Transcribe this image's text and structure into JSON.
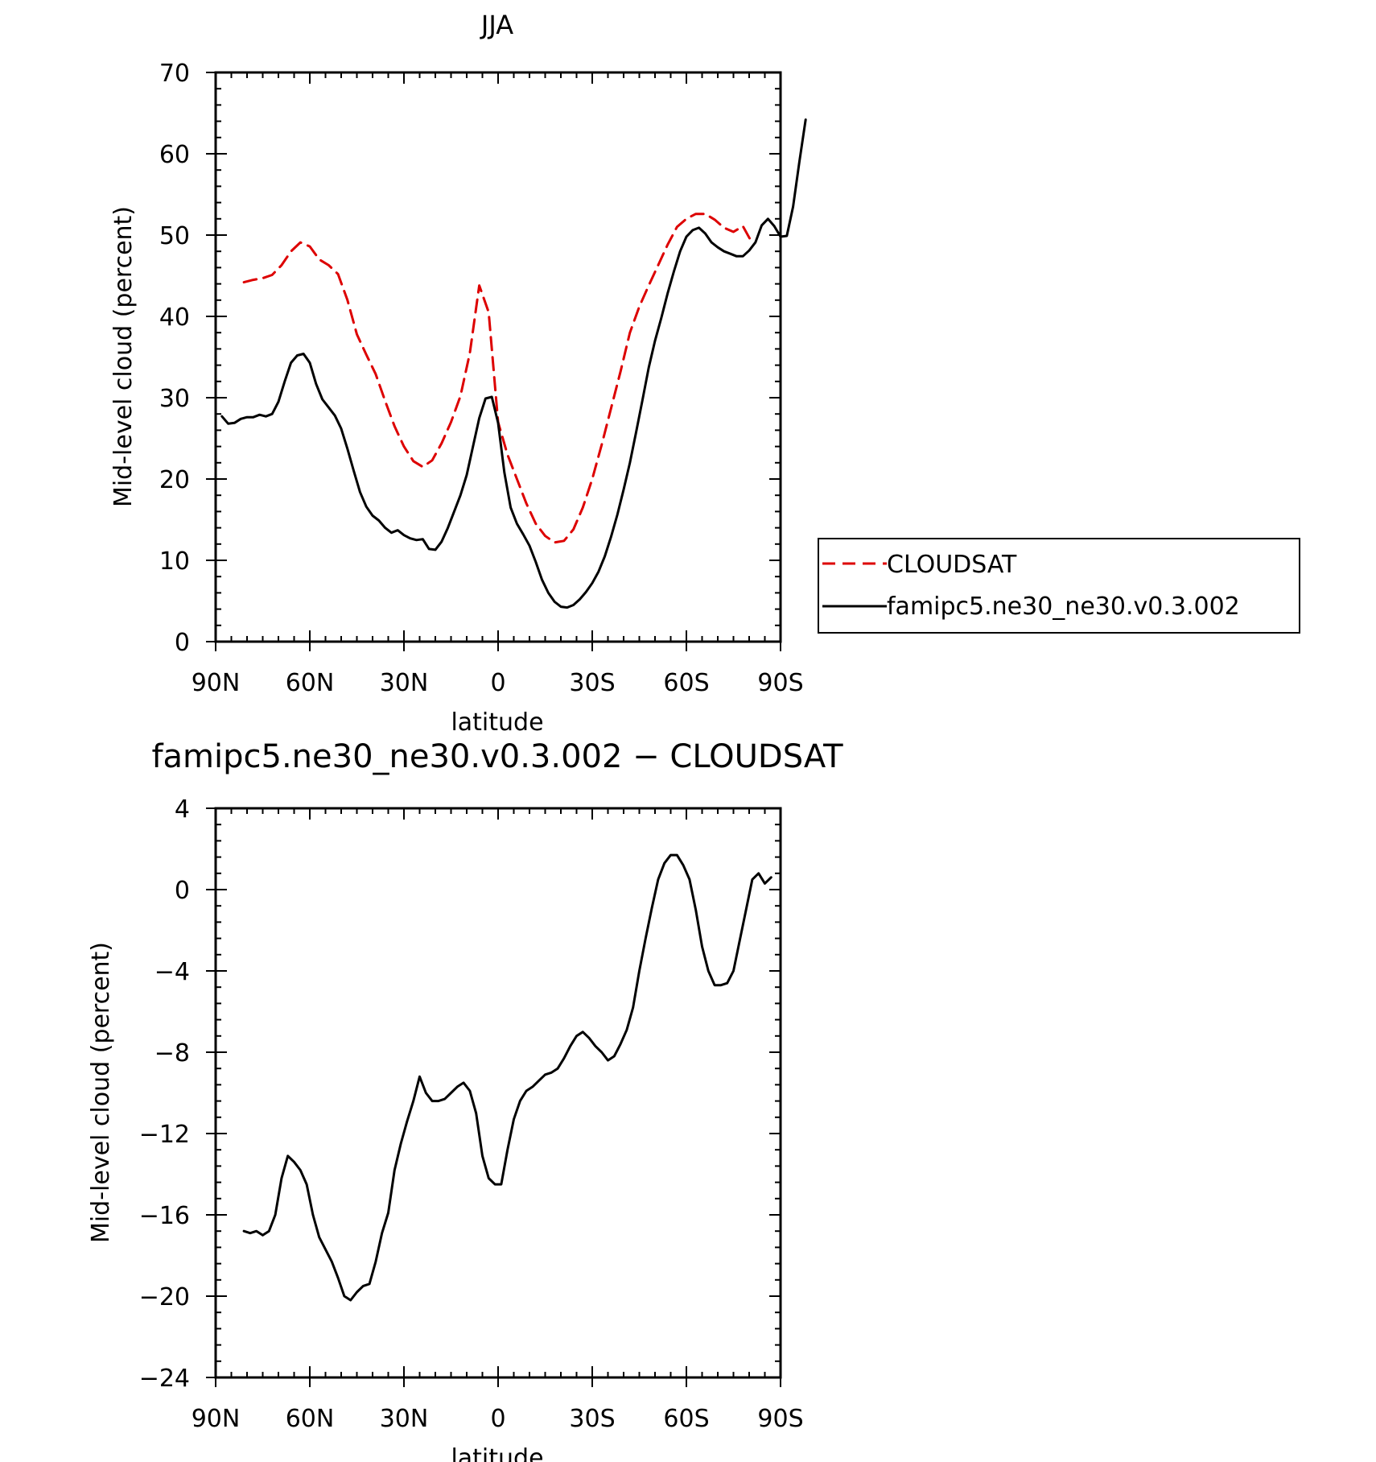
{
  "chart_data": [
    {
      "type": "line",
      "title": "JJA",
      "xlabel": "latitude",
      "ylabel": "Mid-level cloud (percent)",
      "xlim": [
        90,
        -90
      ],
      "ylim": [
        0,
        70
      ],
      "x_ticks": [
        90,
        60,
        30,
        0,
        -30,
        -60,
        -90
      ],
      "x_tick_labels": [
        "90N",
        "60N",
        "30N",
        "0",
        "30S",
        "60S",
        "90S"
      ],
      "y_ticks": [
        0,
        10,
        20,
        30,
        40,
        50,
        60,
        70
      ],
      "y_tick_labels": [
        "0",
        "10",
        "20",
        "30",
        "40",
        "50",
        "60",
        "70"
      ],
      "legend_position": "right",
      "series": [
        {
          "name": "CLOUDSAT",
          "color": "#dd0000",
          "dash": "dashed",
          "points": [
            [
              81,
              44.2
            ],
            [
              78,
              44.5
            ],
            [
              75,
              44.7
            ],
            [
              72,
              45.1
            ],
            [
              69,
              46.3
            ],
            [
              66,
              48
            ],
            [
              63,
              49.1
            ],
            [
              60,
              48.6
            ],
            [
              57,
              47
            ],
            [
              54,
              46.3
            ],
            [
              51,
              45.2
            ],
            [
              48,
              42
            ],
            [
              45,
              37.8
            ],
            [
              42,
              35.3
            ],
            [
              39,
              32.9
            ],
            [
              36,
              29.6
            ],
            [
              33,
              26.5
            ],
            [
              30,
              24
            ],
            [
              27,
              22.2
            ],
            [
              24,
              21.5
            ],
            [
              21,
              22.3
            ],
            [
              18,
              24.4
            ],
            [
              15,
              27
            ],
            [
              12,
              30.2
            ],
            [
              9,
              35.5
            ],
            [
              6,
              43.8
            ],
            [
              3,
              40.5
            ],
            [
              0,
              27
            ],
            [
              -3,
              23
            ],
            [
              -6,
              20
            ],
            [
              -9,
              17
            ],
            [
              -12,
              14.5
            ],
            [
              -15,
              13
            ],
            [
              -18,
              12.2
            ],
            [
              -21,
              12.4
            ],
            [
              -24,
              13.8
            ],
            [
              -27,
              16.5
            ],
            [
              -30,
              20
            ],
            [
              -33,
              24.2
            ],
            [
              -36,
              28.7
            ],
            [
              -39,
              33.2
            ],
            [
              -42,
              38
            ],
            [
              -45,
              41.2
            ],
            [
              -48,
              43.8
            ],
            [
              -51,
              46.3
            ],
            [
              -54,
              48.8
            ],
            [
              -57,
              51
            ],
            [
              -60,
              52
            ],
            [
              -63,
              52.6
            ],
            [
              -66,
              52.6
            ],
            [
              -69,
              51.9
            ],
            [
              -72,
              50.9
            ],
            [
              -75,
              50.4
            ],
            [
              -78,
              51.1
            ],
            [
              -81,
              49
            ]
          ]
        },
        {
          "name": "famipc5.ne30_ne30.v0.3.002",
          "color": "#000000",
          "dash": "solid",
          "points": [
            [
              88,
              27.7
            ],
            [
              86,
              26.8
            ],
            [
              84,
              26.9
            ],
            [
              82,
              27.4
            ],
            [
              80,
              27.6
            ],
            [
              78,
              27.6
            ],
            [
              76,
              27.9
            ],
            [
              74,
              27.7
            ],
            [
              72,
              28
            ],
            [
              70,
              29.5
            ],
            [
              68,
              32
            ],
            [
              66,
              34.3
            ],
            [
              64,
              35.2
            ],
            [
              62,
              35.4
            ],
            [
              60,
              34.3
            ],
            [
              58,
              31.7
            ],
            [
              56,
              29.8
            ],
            [
              54,
              28.8
            ],
            [
              52,
              27.8
            ],
            [
              50,
              26.2
            ],
            [
              48,
              23.7
            ],
            [
              46,
              21
            ],
            [
              44,
              18.4
            ],
            [
              42,
              16.6
            ],
            [
              40,
              15.5
            ],
            [
              38,
              14.9
            ],
            [
              36,
              14
            ],
            [
              34,
              13.4
            ],
            [
              32,
              13.7
            ],
            [
              30,
              13.1
            ],
            [
              28,
              12.7
            ],
            [
              26,
              12.5
            ],
            [
              24,
              12.6
            ],
            [
              22,
              11.4
            ],
            [
              20,
              11.3
            ],
            [
              18,
              12.3
            ],
            [
              16,
              14
            ],
            [
              14,
              16
            ],
            [
              12,
              18
            ],
            [
              10,
              20.5
            ],
            [
              8,
              24
            ],
            [
              6,
              27.5
            ],
            [
              4,
              29.9
            ],
            [
              2,
              30.1
            ],
            [
              0,
              26.9
            ],
            [
              -2,
              20.8
            ],
            [
              -4,
              16.5
            ],
            [
              -6,
              14.5
            ],
            [
              -8,
              13.2
            ],
            [
              -10,
              11.8
            ],
            [
              -12,
              9.8
            ],
            [
              -14,
              7.6
            ],
            [
              -16,
              6
            ],
            [
              -18,
              4.9
            ],
            [
              -20,
              4.3
            ],
            [
              -22,
              4.2
            ],
            [
              -24,
              4.5
            ],
            [
              -26,
              5.2
            ],
            [
              -28,
              6.1
            ],
            [
              -30,
              7.2
            ],
            [
              -32,
              8.6
            ],
            [
              -34,
              10.5
            ],
            [
              -36,
              12.9
            ],
            [
              -38,
              15.6
            ],
            [
              -40,
              18.7
            ],
            [
              -42,
              22
            ],
            [
              -44,
              25.8
            ],
            [
              -46,
              29.7
            ],
            [
              -48,
              33.7
            ],
            [
              -50,
              37
            ],
            [
              -52,
              39.8
            ],
            [
              -54,
              42.8
            ],
            [
              -56,
              45.5
            ],
            [
              -58,
              48
            ],
            [
              -60,
              49.8
            ],
            [
              -62,
              50.6
            ],
            [
              -64,
              50.9
            ],
            [
              -66,
              50.2
            ],
            [
              -68,
              49.1
            ],
            [
              -70,
              48.5
            ],
            [
              -72,
              48
            ],
            [
              -74,
              47.7
            ],
            [
              -76,
              47.4
            ],
            [
              -78,
              47.4
            ],
            [
              -80,
              48.1
            ],
            [
              -82,
              49.1
            ],
            [
              -84,
              51.2
            ],
            [
              -86,
              52
            ],
            [
              -88,
              51.1
            ],
            [
              -90,
              49.8
            ],
            [
              -92,
              49.9
            ],
            [
              -94,
              53.5
            ],
            [
              -96,
              59
            ],
            [
              -98,
              64.2
            ]
          ]
        }
      ]
    },
    {
      "type": "line",
      "title": "famipc5.ne30_ne30.v0.3.002 − CLOUDSAT",
      "xlabel": "latitude",
      "ylabel": "Mid-level cloud (percent)",
      "xlim": [
        90,
        -90
      ],
      "ylim": [
        -24,
        4
      ],
      "x_ticks": [
        90,
        60,
        30,
        0,
        -30,
        -60,
        -90
      ],
      "x_tick_labels": [
        "90N",
        "60N",
        "30N",
        "0",
        "30S",
        "60S",
        "90S"
      ],
      "y_ticks": [
        4,
        0,
        -4,
        -8,
        -12,
        -16,
        -20,
        -24
      ],
      "y_tick_labels": [
        "4",
        "0",
        "−4",
        "−8",
        "−12",
        "−16",
        "−20",
        "−24"
      ],
      "series": [
        {
          "color": "#000000",
          "dash": "solid",
          "points": [
            [
              81,
              -16.8
            ],
            [
              79,
              -16.9
            ],
            [
              77,
              -16.8
            ],
            [
              75,
              -17
            ],
            [
              73,
              -16.8
            ],
            [
              71,
              -16
            ],
            [
              69,
              -14.2
            ],
            [
              67,
              -13.1
            ],
            [
              65,
              -13.4
            ],
            [
              63,
              -13.8
            ],
            [
              61,
              -14.5
            ],
            [
              59,
              -16
            ],
            [
              57,
              -17.1
            ],
            [
              55,
              -17.7
            ],
            [
              53,
              -18.3
            ],
            [
              51,
              -19.1
            ],
            [
              49,
              -20
            ],
            [
              47,
              -20.2
            ],
            [
              45,
              -19.8
            ],
            [
              43,
              -19.5
            ],
            [
              41,
              -19.4
            ],
            [
              39,
              -18.3
            ],
            [
              37,
              -16.9
            ],
            [
              35,
              -15.9
            ],
            [
              33,
              -13.8
            ],
            [
              31,
              -12.5
            ],
            [
              29,
              -11.4
            ],
            [
              27,
              -10.4
            ],
            [
              25,
              -9.2
            ],
            [
              23,
              -10
            ],
            [
              21,
              -10.4
            ],
            [
              19,
              -10.4
            ],
            [
              17,
              -10.3
            ],
            [
              15,
              -10
            ],
            [
              13,
              -9.7
            ],
            [
              11,
              -9.5
            ],
            [
              9,
              -9.9
            ],
            [
              7,
              -11
            ],
            [
              5,
              -13.1
            ],
            [
              3,
              -14.2
            ],
            [
              1,
              -14.5
            ],
            [
              -1,
              -14.5
            ],
            [
              -3,
              -12.8
            ],
            [
              -5,
              -11.3
            ],
            [
              -7,
              -10.4
            ],
            [
              -9,
              -9.9
            ],
            [
              -11,
              -9.7
            ],
            [
              -13,
              -9.4
            ],
            [
              -15,
              -9.1
            ],
            [
              -17,
              -9
            ],
            [
              -19,
              -8.8
            ],
            [
              -21,
              -8.3
            ],
            [
              -23,
              -7.7
            ],
            [
              -25,
              -7.2
            ],
            [
              -27,
              -7
            ],
            [
              -29,
              -7.3
            ],
            [
              -31,
              -7.7
            ],
            [
              -33,
              -8
            ],
            [
              -35,
              -8.4
            ],
            [
              -37,
              -8.2
            ],
            [
              -39,
              -7.6
            ],
            [
              -41,
              -6.9
            ],
            [
              -43,
              -5.8
            ],
            [
              -45,
              -4
            ],
            [
              -47,
              -2.4
            ],
            [
              -49,
              -0.9
            ],
            [
              -51,
              0.5
            ],
            [
              -53,
              1.3
            ],
            [
              -55,
              1.7
            ],
            [
              -57,
              1.7
            ],
            [
              -59,
              1.2
            ],
            [
              -61,
              0.5
            ],
            [
              -63,
              -1
            ],
            [
              -65,
              -2.8
            ],
            [
              -67,
              -4
            ],
            [
              -69,
              -4.7
            ],
            [
              -71,
              -4.7
            ],
            [
              -73,
              -4.6
            ],
            [
              -75,
              -4
            ],
            [
              -77,
              -2.5
            ],
            [
              -79,
              -1
            ],
            [
              -81,
              0.5
            ],
            [
              -83,
              0.8
            ],
            [
              -85,
              0.3
            ],
            [
              -87,
              0.6
            ]
          ]
        }
      ]
    }
  ]
}
